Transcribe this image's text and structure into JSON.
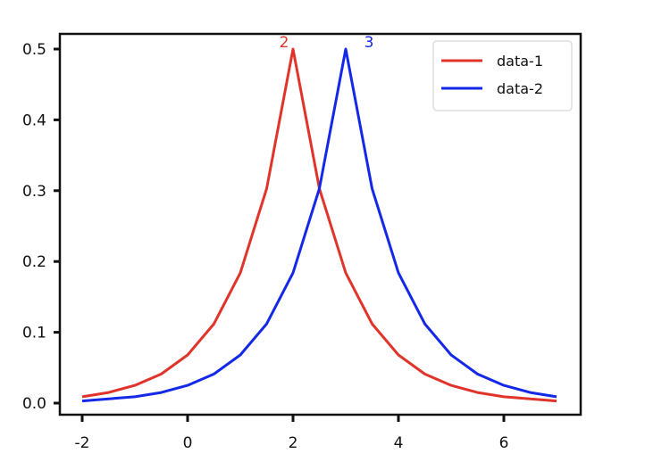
{
  "chart_data": {
    "type": "line",
    "title": "",
    "xlabel": "",
    "ylabel": "",
    "xlim": [
      -2.4,
      7.4
    ],
    "ylim": [
      -0.01,
      0.52
    ],
    "xticks": [
      "-2",
      "0",
      "2",
      "4",
      "6"
    ],
    "xtick_values": [
      -2,
      0,
      2,
      4,
      6
    ],
    "yticks": [
      "0.0",
      "0.1",
      "0.2",
      "0.3",
      "0.4",
      "0.5"
    ],
    "ytick_values": [
      0,
      0.1,
      0.2,
      0.3,
      0.4,
      0.5
    ],
    "grid": false,
    "legend_placement": "top-right",
    "x": [
      -2,
      -1.5,
      -1,
      -0.5,
      0,
      0.5,
      1,
      1.5,
      2,
      2.5,
      3,
      3.5,
      4,
      4.5,
      5,
      5.5,
      6,
      6.5,
      7
    ],
    "series": [
      {
        "name": "data-1",
        "color": "#e0342a",
        "values": [
          0.009,
          0.015,
          0.025,
          0.041,
          0.068,
          0.112,
          0.184,
          0.303,
          0.5,
          0.303,
          0.184,
          0.112,
          0.068,
          0.041,
          0.025,
          0.015,
          0.009,
          0.006,
          0.003
        ]
      },
      {
        "name": "data-2",
        "color": "#1428e8",
        "values": [
          0.003,
          0.006,
          0.009,
          0.015,
          0.025,
          0.041,
          0.068,
          0.112,
          0.184,
          0.303,
          0.5,
          0.303,
          0.184,
          0.112,
          0.068,
          0.041,
          0.025,
          0.015,
          0.009
        ]
      }
    ],
    "annotations": [
      {
        "text": "2",
        "x": 2,
        "y": 0.5,
        "color": "#e0342a"
      },
      {
        "text": "3",
        "x": 3,
        "y": 0.5,
        "color": "#1428e8"
      }
    ]
  }
}
